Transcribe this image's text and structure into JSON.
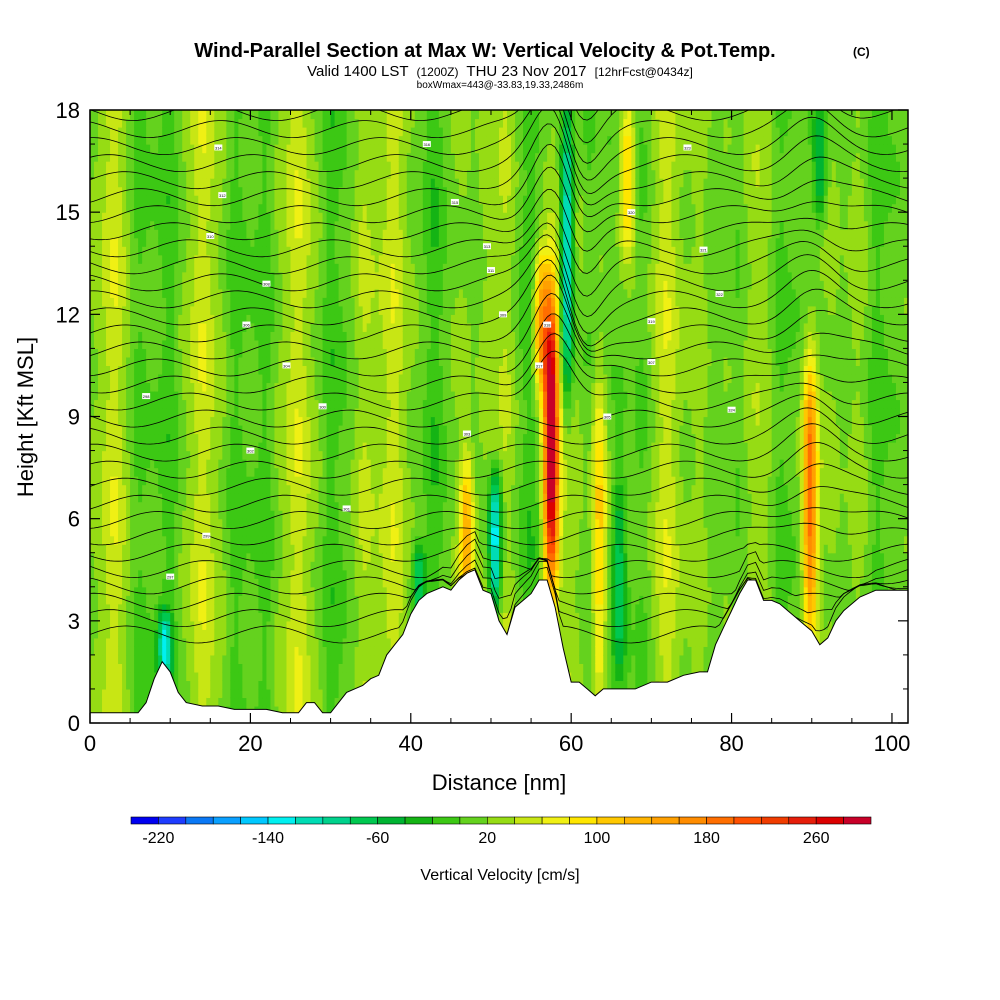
{
  "chart_data": {
    "type": "heatmap",
    "title": "Wind-Parallel Section at Max W: Vertical Velocity & Pot.Temp.",
    "title_mark": "(C)",
    "subtitle_prefix": "Valid 1400 LST",
    "subtitle_z": "(1200Z)",
    "subtitle_date": "THU 23 Nov 2017",
    "subtitle_fcst": "[12hrFcst@0434z]",
    "subtitle2": "boxWmax=443@-33.83,19.33,2486m",
    "xlabel": "Distance [nm]",
    "ylabel": "Height [Kft MSL]",
    "xlim": [
      0,
      102
    ],
    "ylim": [
      0,
      18
    ],
    "x_ticks": [
      0,
      20,
      40,
      60,
      80,
      100
    ],
    "y_ticks": [
      0,
      3,
      6,
      9,
      12,
      15,
      18
    ],
    "colorbar": {
      "label": "Vertical Velocity [cm/s]",
      "min": -240,
      "max": 300,
      "step": 20,
      "tick_labels": [
        "-220",
        "-140",
        "-60",
        "20",
        "100",
        "180",
        "260"
      ],
      "tick_values": [
        -220,
        -140,
        -60,
        20,
        100,
        180,
        260
      ],
      "colors": [
        "#0000f0",
        "#1e3cff",
        "#0a78f5",
        "#0aa0ff",
        "#00c8ff",
        "#00f0f0",
        "#00dcb4",
        "#00d28c",
        "#00c850",
        "#00b432",
        "#14b414",
        "#3cc814",
        "#64d21e",
        "#96dc14",
        "#c8e614",
        "#f0f014",
        "#ffe600",
        "#ffc800",
        "#ffb400",
        "#ffa000",
        "#ff8c00",
        "#ff6e00",
        "#ff5000",
        "#f03c00",
        "#e61e0a",
        "#dc0000",
        "#c80028"
      ]
    },
    "updraft_cores": [
      {
        "x": 57.5,
        "z_bottom": 4.2,
        "z_top": 12.5,
        "w_max": 300
      },
      {
        "x": 89.8,
        "z_bottom": 2.5,
        "z_top": 10.5,
        "w_max": 180
      },
      {
        "x": 47.0,
        "z_bottom": 3.5,
        "z_top": 7.5,
        "w_max": 120
      },
      {
        "x": 56.2,
        "z_bottom": 10.0,
        "z_top": 13.5,
        "w_max": 140
      },
      {
        "x": 67.0,
        "z_bottom": 14.0,
        "z_top": 18.0,
        "w_max": 100
      },
      {
        "x": 63.5,
        "z_bottom": 1.0,
        "z_top": 10.0,
        "w_max": 90
      }
    ],
    "downdraft_cores": [
      {
        "x": 59.5,
        "z_bottom": 10.0,
        "z_top": 18.0,
        "w_min": -160
      },
      {
        "x": 50.5,
        "z_bottom": 3.6,
        "z_top": 7.0,
        "w_min": -160
      },
      {
        "x": 9.3,
        "z_bottom": 1.5,
        "z_top": 3.0,
        "w_min": -120
      },
      {
        "x": 41.0,
        "z_bottom": 3.2,
        "z_top": 5.0,
        "w_min": -100
      },
      {
        "x": 66.0,
        "z_bottom": 1.5,
        "z_top": 7.0,
        "w_min": -80
      },
      {
        "x": 91.0,
        "z_bottom": 15.0,
        "z_top": 18.0,
        "w_min": -80
      }
    ],
    "terrain_profile": {
      "x": [
        0,
        6,
        7,
        8,
        9,
        10,
        11,
        12,
        14,
        16,
        18,
        20,
        22,
        24,
        26,
        27,
        28,
        29,
        30,
        31,
        32,
        33,
        34,
        35,
        36,
        37,
        38,
        39,
        40,
        41,
        42,
        43,
        44,
        45,
        46,
        47,
        48,
        49,
        50,
        51,
        52,
        53,
        54,
        55,
        56,
        57,
        58,
        59,
        60,
        61,
        62,
        63,
        64,
        66,
        68,
        70,
        72,
        74,
        76,
        77,
        78,
        79,
        80,
        81,
        82,
        83,
        84,
        85,
        86,
        87,
        88,
        89,
        90,
        91,
        92,
        93,
        94,
        96,
        98,
        100,
        102
      ],
      "z": [
        0.3,
        0.3,
        0.6,
        1.3,
        1.8,
        1.5,
        0.9,
        0.6,
        0.5,
        0.5,
        0.4,
        0.4,
        0.4,
        0.3,
        0.3,
        0.6,
        0.6,
        0.3,
        0.3,
        0.6,
        0.9,
        1.0,
        1.1,
        1.3,
        1.4,
        2.0,
        2.3,
        2.6,
        3.2,
        3.6,
        3.8,
        3.9,
        4.0,
        3.9,
        4.2,
        4.4,
        4.5,
        3.9,
        3.8,
        3.0,
        2.6,
        3.4,
        3.6,
        3.8,
        4.2,
        4.2,
        3.4,
        2.2,
        1.2,
        1.2,
        1.0,
        0.8,
        1.0,
        1.0,
        1.0,
        1.2,
        1.2,
        1.4,
        1.5,
        1.5,
        2.3,
        2.8,
        3.3,
        3.8,
        4.2,
        4.2,
        3.6,
        3.6,
        3.5,
        3.3,
        3.1,
        2.9,
        2.7,
        2.3,
        2.5,
        3.0,
        3.3,
        3.7,
        3.9,
        3.9,
        3.9
      ]
    },
    "theta_contour_labels": [
      {
        "text": "298",
        "x": 7,
        "z": 9.6
      },
      {
        "text": "299",
        "x": 14.5,
        "z": 5.5
      },
      {
        "text": "297",
        "x": 10,
        "z": 4.3
      },
      {
        "text": "302",
        "x": 20,
        "z": 8.0
      },
      {
        "text": "304",
        "x": 24.5,
        "z": 10.5
      },
      {
        "text": "306",
        "x": 19.5,
        "z": 11.7
      },
      {
        "text": "308",
        "x": 22,
        "z": 12.9
      },
      {
        "text": "310",
        "x": 15,
        "z": 14.3
      },
      {
        "text": "312",
        "x": 16.5,
        "z": 15.5
      },
      {
        "text": "314",
        "x": 16,
        "z": 16.9
      },
      {
        "text": "300",
        "x": 29,
        "z": 9.3
      },
      {
        "text": "301",
        "x": 32,
        "z": 6.3
      },
      {
        "text": "303",
        "x": 47,
        "z": 8.5
      },
      {
        "text": "309",
        "x": 51.5,
        "z": 12.0
      },
      {
        "text": "311",
        "x": 50,
        "z": 13.3
      },
      {
        "text": "313",
        "x": 49.5,
        "z": 14.0
      },
      {
        "text": "315",
        "x": 45.5,
        "z": 15.3
      },
      {
        "text": "316",
        "x": 42,
        "z": 17.0
      },
      {
        "text": "317",
        "x": 56,
        "z": 10.5
      },
      {
        "text": "318",
        "x": 57,
        "z": 11.7
      },
      {
        "text": "305",
        "x": 64.5,
        "z": 9.0
      },
      {
        "text": "307",
        "x": 70,
        "z": 10.6
      },
      {
        "text": "319",
        "x": 70,
        "z": 11.8
      },
      {
        "text": "320",
        "x": 67.5,
        "z": 15.0
      },
      {
        "text": "321",
        "x": 76.5,
        "z": 13.9
      },
      {
        "text": "322",
        "x": 78.5,
        "z": 12.6
      },
      {
        "text": "323",
        "x": 74.5,
        "z": 16.9
      },
      {
        "text": "324",
        "x": 80,
        "z": 9.2
      }
    ]
  }
}
